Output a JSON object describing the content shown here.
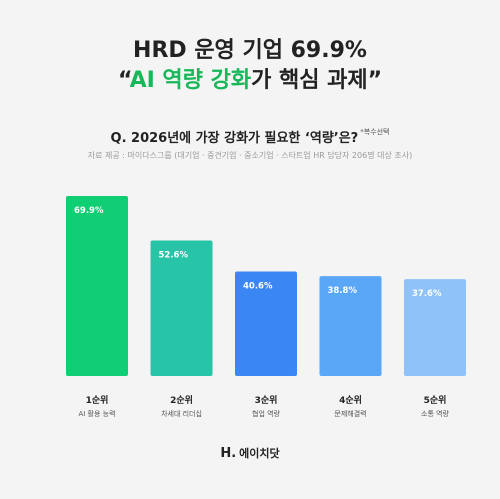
{
  "header": {
    "line1": "HRD 운영 기업 69.9%",
    "line2_prefix": "“",
    "line2_highlight": "AI 역량 강화",
    "line2_suffix": "가 핵심 과제”"
  },
  "question": {
    "text": "Q. 2026년에 가장 강화가 필요한 ‘역량’은?",
    "note": "*복수선택"
  },
  "source": "자료 제공 : 마이다스그룹 (대기업 · 중견기업 · 중소기업 · 스타트업 HR 담당자 206명 대상 조사)",
  "chart_data": {
    "type": "bar",
    "categories": [
      "AI 활용 능력",
      "차세대 리더십",
      "협업 역량",
      "문제해결력",
      "소통 역량"
    ],
    "ranks": [
      "1순위",
      "2순위",
      "3순위",
      "4순위",
      "5순위"
    ],
    "values": [
      69.9,
      52.6,
      40.6,
      38.8,
      37.6
    ],
    "value_labels": [
      "69.9%",
      "52.6%",
      "40.6%",
      "38.8%",
      "37.6%"
    ],
    "colors": [
      "#0fce73",
      "#27c4a7",
      "#3a86f2",
      "#5aa6f7",
      "#8fc2f8"
    ],
    "ylim": [
      0,
      69.9
    ]
  },
  "footer": {
    "logo_mark": "H.",
    "logo_text": "에이치닷"
  }
}
